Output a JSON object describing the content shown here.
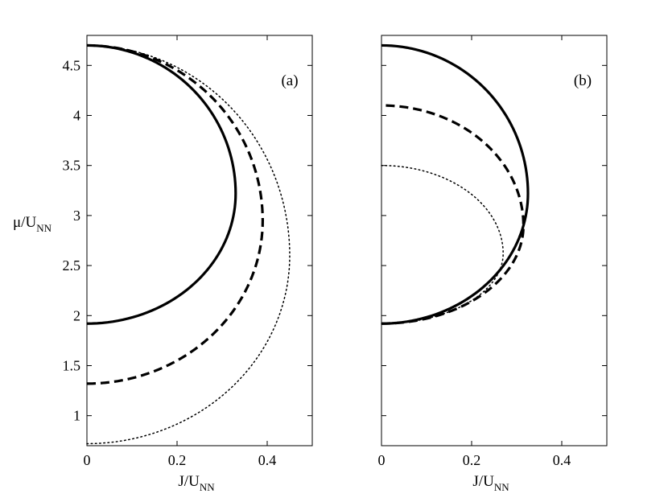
{
  "chart_data": [
    {
      "type": "line",
      "panel_label": "(a)",
      "xlabel": {
        "main": "J/U",
        "sub": "NN"
      },
      "ylabel": {
        "main": "μ/U",
        "sub": "NN"
      },
      "xlim": [
        0,
        0.5
      ],
      "ylim": [
        0.7,
        4.8
      ],
      "xticks": [
        "0",
        "0.2",
        "0.4"
      ],
      "xtick_values": [
        0,
        0.2,
        0.4
      ],
      "yticks": [
        "1",
        "1.5",
        "2",
        "2.5",
        "3",
        "3.5",
        "4",
        "4.5"
      ],
      "ytick_values": [
        1,
        1.5,
        2,
        2.5,
        3,
        3.5,
        4,
        4.5
      ],
      "series": [
        {
          "style": "solid",
          "color": "#000000",
          "lobe": {
            "y_low": 1.92,
            "y_high": 4.7,
            "j_max": 0.33,
            "y_at_jmax": 3.22
          }
        },
        {
          "style": "dashed",
          "color": "#000000",
          "lobe": {
            "y_low": 1.32,
            "y_high": 4.7,
            "j_max": 0.39,
            "y_at_jmax": 2.95
          }
        },
        {
          "style": "dotted",
          "color": "#000000",
          "lobe": {
            "y_low": 0.72,
            "y_high": 4.7,
            "j_max": 0.45,
            "y_at_jmax": 2.6
          }
        }
      ]
    },
    {
      "type": "line",
      "panel_label": "(b)",
      "xlabel": {
        "main": "J/U",
        "sub": "NN"
      },
      "ylabel": {
        "main": "",
        "sub": ""
      },
      "xlim": [
        0,
        0.5
      ],
      "ylim": [
        0.7,
        4.8
      ],
      "xticks": [
        "0",
        "0.2",
        "0.4"
      ],
      "xtick_values": [
        0,
        0.2,
        0.4
      ],
      "yticks": [],
      "ytick_values": [
        1,
        1.5,
        2,
        2.5,
        3,
        3.5,
        4,
        4.5
      ],
      "series": [
        {
          "style": "solid",
          "color": "#000000",
          "lobe": {
            "y_low": 1.92,
            "y_high": 4.7,
            "j_max": 0.325,
            "y_at_jmax": 3.22
          }
        },
        {
          "style": "dashed",
          "color": "#000000",
          "lobe": {
            "y_low": 1.92,
            "y_high": 4.1,
            "j_max": 0.315,
            "y_at_jmax": 2.9
          }
        },
        {
          "style": "dotted",
          "color": "#000000",
          "lobe": {
            "y_low": 1.92,
            "y_high": 3.5,
            "j_max": 0.27,
            "y_at_jmax": 2.62
          }
        }
      ]
    }
  ]
}
